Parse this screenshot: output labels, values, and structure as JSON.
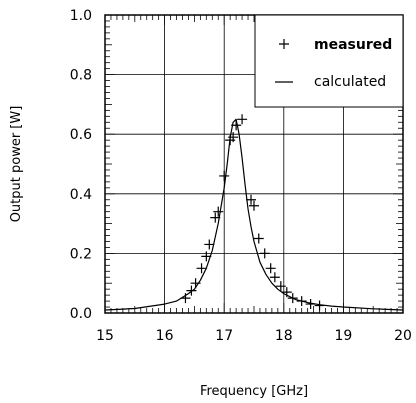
{
  "chart_data": {
    "type": "line",
    "title": "",
    "xlabel": "Frequency [GHz]",
    "ylabel": "Output power [W]",
    "xlim": [
      15,
      20
    ],
    "ylim": [
      0,
      1.0
    ],
    "x_ticks": [
      "15",
      "16",
      "17",
      "18",
      "19",
      "20"
    ],
    "y_ticks": [
      "0.0",
      "0.2",
      "0.4",
      "0.6",
      "0.8",
      "1.0"
    ],
    "grid": true,
    "legend_position": "top-right",
    "series": [
      {
        "name": "measured",
        "marker": "plus",
        "x": [
          16.35,
          16.45,
          16.52,
          16.62,
          16.7,
          16.75,
          16.85,
          16.9,
          17.0,
          17.1,
          17.15,
          17.2,
          17.3,
          17.45,
          17.5,
          17.58,
          17.68,
          17.78,
          17.85,
          17.95,
          18.05,
          18.15,
          18.3,
          18.45,
          18.6
        ],
        "y": [
          0.05,
          0.075,
          0.1,
          0.15,
          0.19,
          0.23,
          0.32,
          0.34,
          0.46,
          0.58,
          0.59,
          0.63,
          0.65,
          0.38,
          0.36,
          0.25,
          0.2,
          0.15,
          0.12,
          0.09,
          0.07,
          0.05,
          0.04,
          0.03,
          0.025
        ]
      },
      {
        "name": "calculated",
        "marker": "line",
        "x": [
          15.0,
          15.5,
          16.0,
          16.2,
          16.4,
          16.5,
          16.6,
          16.7,
          16.8,
          16.9,
          17.0,
          17.05,
          17.1,
          17.15,
          17.2,
          17.25,
          17.3,
          17.35,
          17.4,
          17.45,
          17.5,
          17.6,
          17.7,
          17.8,
          17.9,
          18.0,
          18.2,
          18.4,
          18.6,
          18.8,
          19.0,
          19.5,
          20.0
        ],
        "y": [
          0.01,
          0.015,
          0.03,
          0.04,
          0.065,
          0.08,
          0.11,
          0.15,
          0.21,
          0.3,
          0.42,
          0.5,
          0.59,
          0.64,
          0.65,
          0.6,
          0.52,
          0.43,
          0.35,
          0.29,
          0.24,
          0.17,
          0.13,
          0.1,
          0.08,
          0.065,
          0.045,
          0.035,
          0.028,
          0.023,
          0.02,
          0.014,
          0.01
        ]
      }
    ]
  }
}
